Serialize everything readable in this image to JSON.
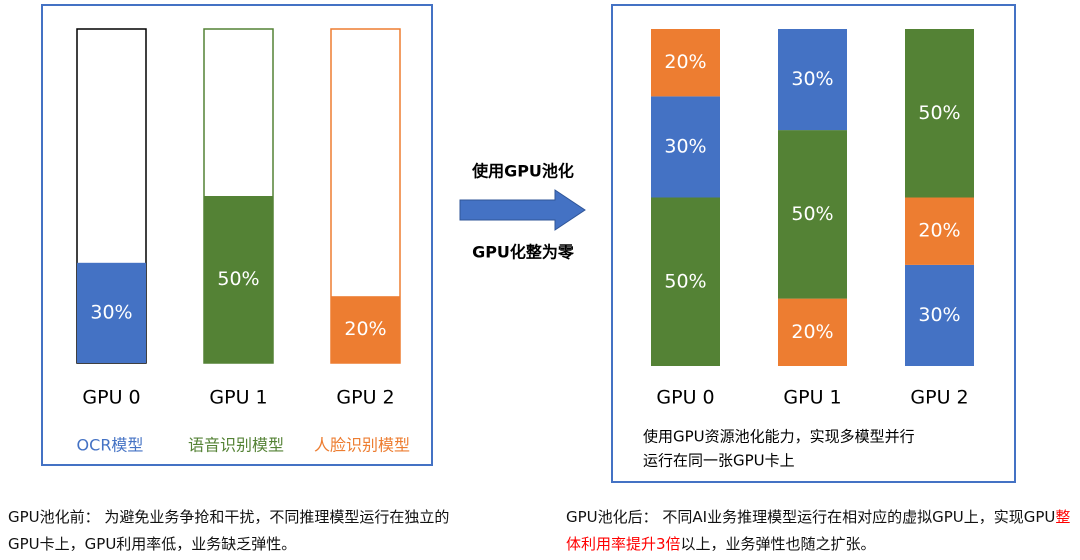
{
  "arrow": {
    "top_text": "使用GPU池化",
    "bottom_text": "GPU化整为零"
  },
  "left_panel": {
    "ylim": [
      0,
      100
    ],
    "gpus": [
      {
        "label": "GPU 0",
        "outline_color": "#000000",
        "segments": [
          {
            "value": 30,
            "value_label": "30%",
            "color": "#4472c4"
          }
        ]
      },
      {
        "label": "GPU 1",
        "outline_color": "#548235",
        "segments": [
          {
            "value": 50,
            "value_label": "50%",
            "color": "#548235"
          }
        ]
      },
      {
        "label": "GPU 2",
        "outline_color": "#ed7d31",
        "segments": [
          {
            "value": 20,
            "value_label": "20%",
            "color": "#ed7d31"
          }
        ]
      }
    ],
    "legend": [
      {
        "name": "OCR模型",
        "color": "#4472c4"
      },
      {
        "name": "语音识别模型",
        "color": "#548235"
      },
      {
        "name": "人脸识别模型",
        "color": "#ed7d31"
      }
    ]
  },
  "right_panel": {
    "ylim": [
      0,
      100
    ],
    "gpus": [
      {
        "label": "GPU 0",
        "segments": [
          {
            "value": 50,
            "value_label": "50%",
            "color": "#548235"
          },
          {
            "value": 30,
            "value_label": "30%",
            "color": "#4472c4"
          },
          {
            "value": 20,
            "value_label": "20%",
            "color": "#ed7d31"
          }
        ]
      },
      {
        "label": "GPU 1",
        "segments": [
          {
            "value": 20,
            "value_label": "20%",
            "color": "#ed7d31"
          },
          {
            "value": 50,
            "value_label": "50%",
            "color": "#548235"
          },
          {
            "value": 30,
            "value_label": "30%",
            "color": "#4472c4"
          }
        ]
      },
      {
        "label": "GPU 2",
        "segments": [
          {
            "value": 30,
            "value_label": "30%",
            "color": "#4472c4"
          },
          {
            "value": 20,
            "value_label": "20%",
            "color": "#ed7d31"
          },
          {
            "value": 50,
            "value_label": "50%",
            "color": "#548235"
          }
        ]
      }
    ],
    "note": [
      "使用GPU资源池化能力，实现多模型并行",
      "运行在同一张GPU卡上"
    ]
  },
  "captions": {
    "left": "GPU池化前： 为避免业务争抢和干扰，不同推理模型运行在独立的GPU卡上，GPU利用率低，业务缺乏弹性。",
    "right": [
      "GPU池化后： 不同AI业务推理模型运行在相对应的虚拟GPU上，实现GPU",
      "整体利用率提升3倍",
      "以上，业务弹性也随之扩张。"
    ]
  }
}
